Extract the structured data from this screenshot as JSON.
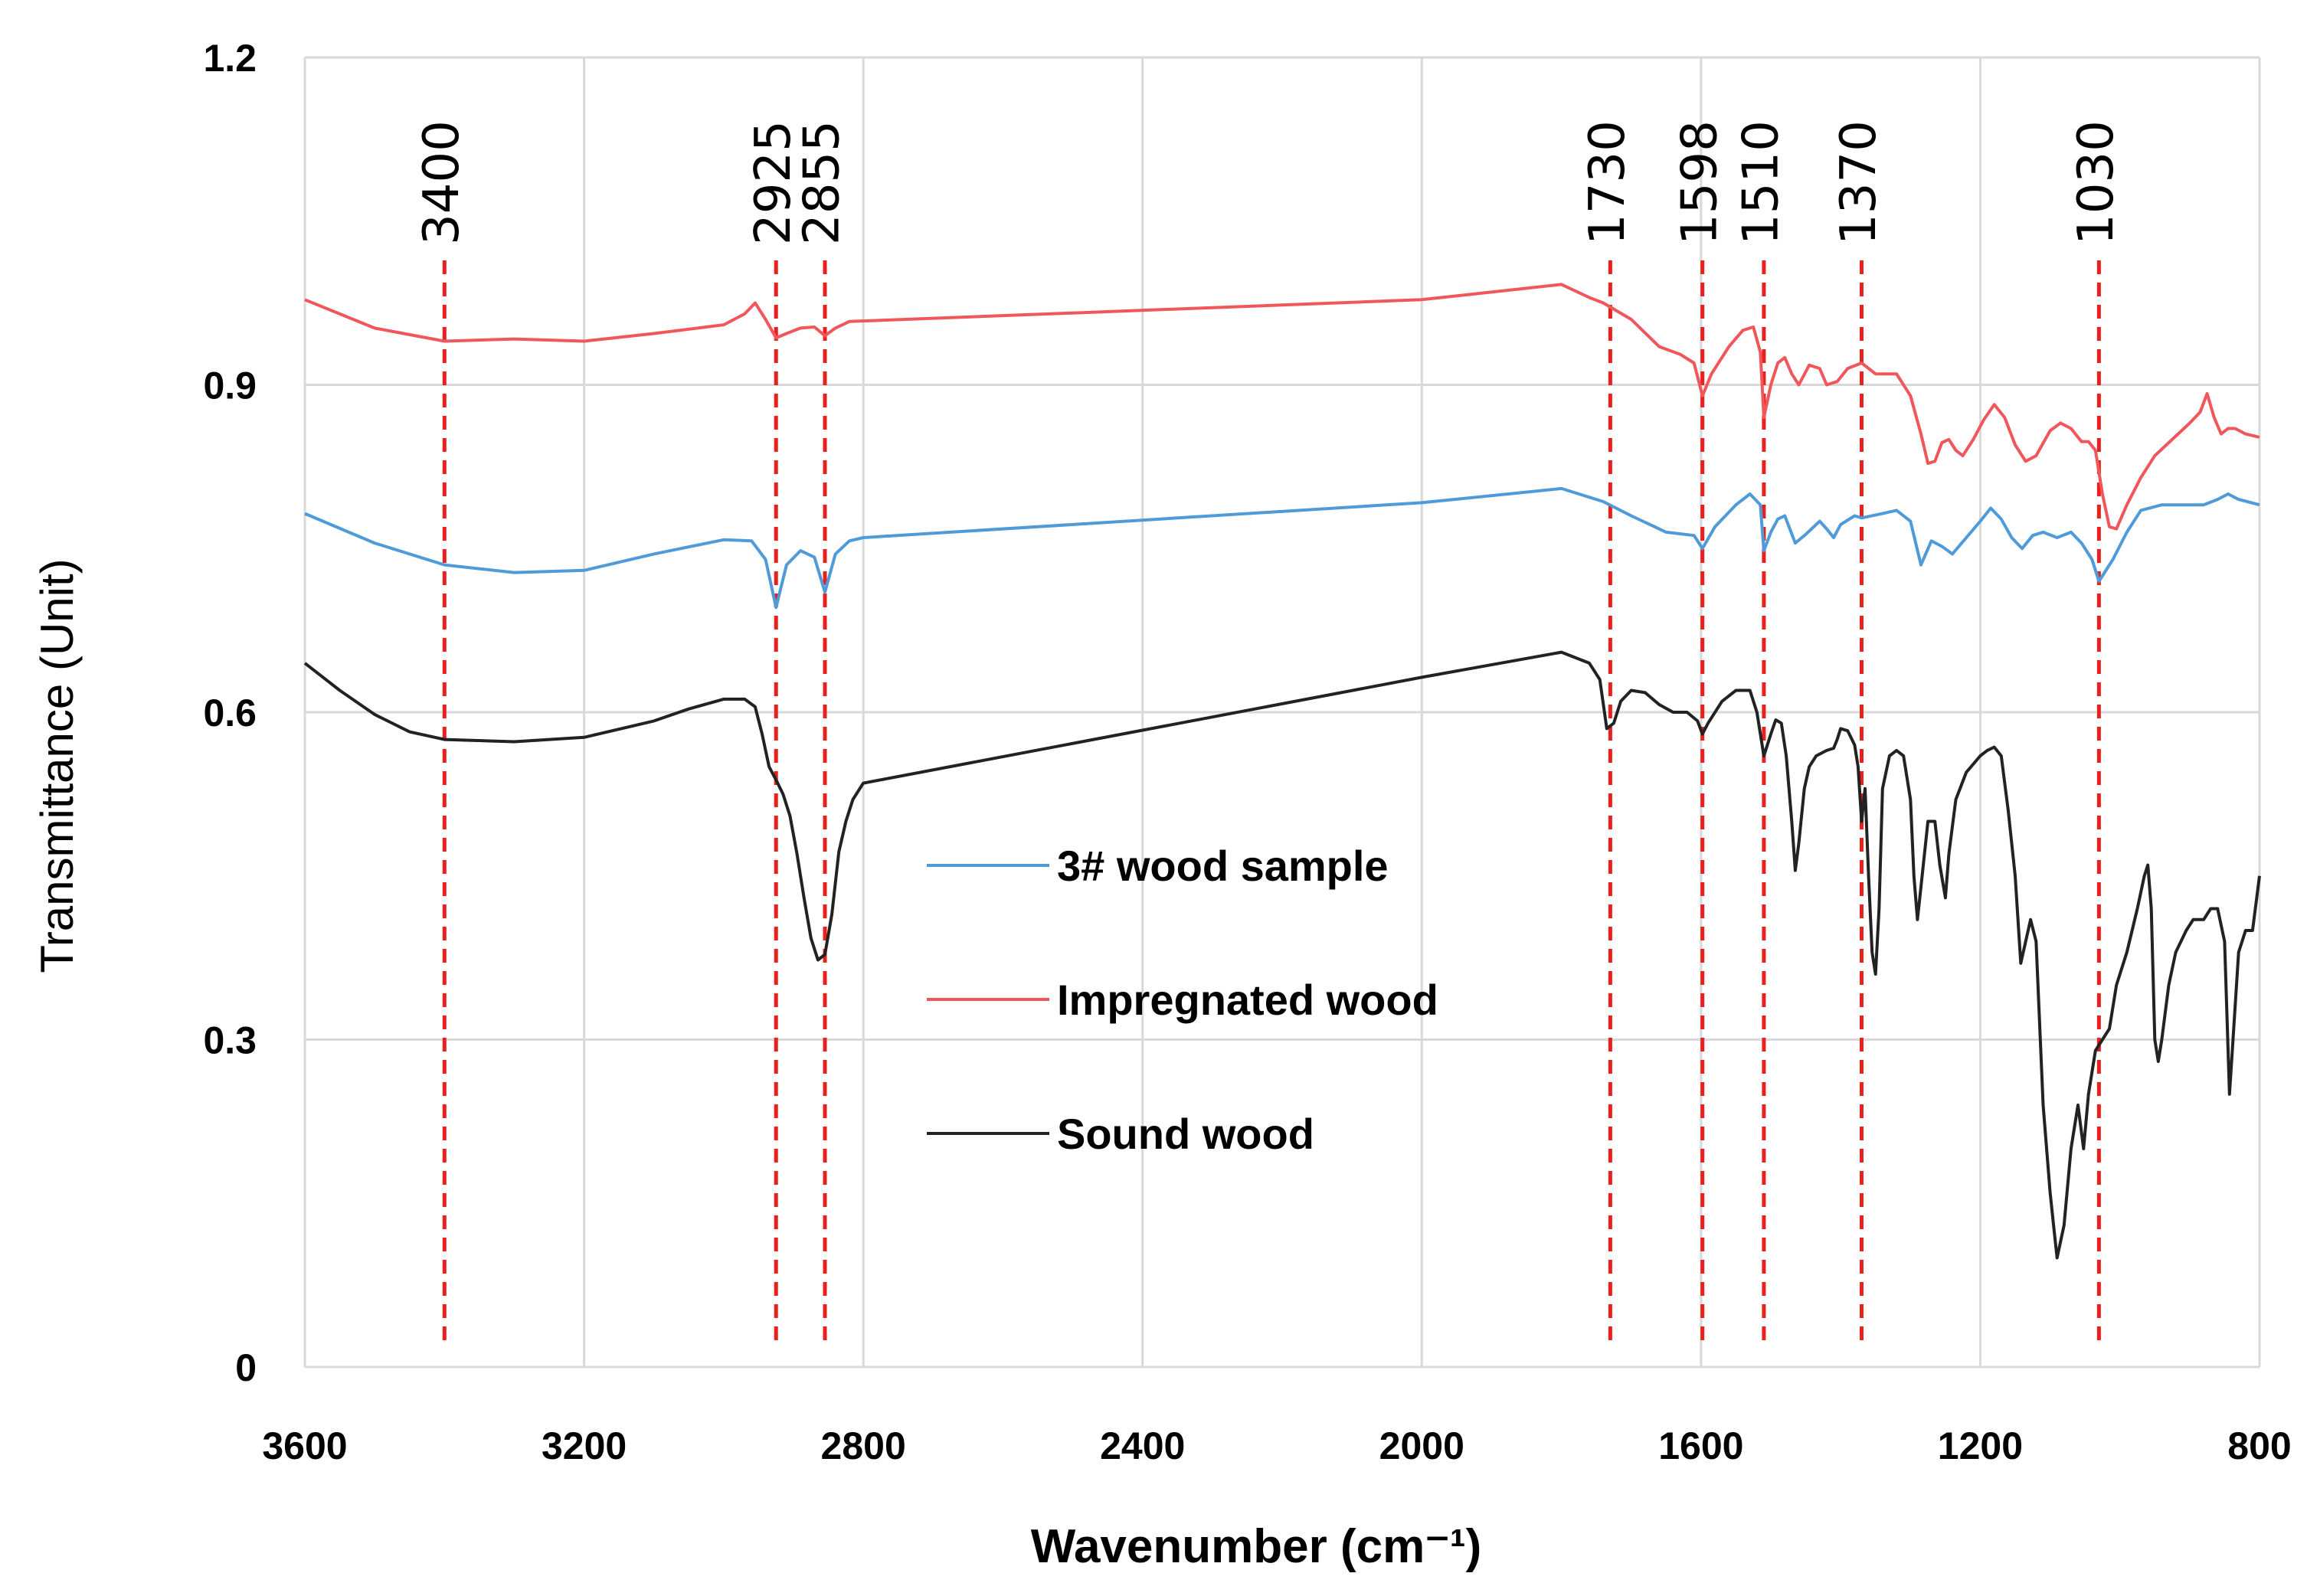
{
  "chart_data": {
    "type": "line",
    "xlabel": "Wavenumber (cm⁻¹)",
    "ylabel": "Transmittance (Unit)",
    "xlim": [
      3600,
      800
    ],
    "ylim": [
      0,
      1.2
    ],
    "x_ticks": [
      {
        "value": 3600,
        "label": "3600"
      },
      {
        "value": 3200,
        "label": "3200"
      },
      {
        "value": 2800,
        "label": "2800"
      },
      {
        "value": 2400,
        "label": "2400"
      },
      {
        "value": 2000,
        "label": "2000"
      },
      {
        "value": 1600,
        "label": "1600"
      },
      {
        "value": 1200,
        "label": "1200"
      },
      {
        "value": 800,
        "label": "800"
      }
    ],
    "y_ticks": [
      {
        "value": 0,
        "label": "0"
      },
      {
        "value": 0.3,
        "label": "0.3"
      },
      {
        "value": 0.6,
        "label": "0.6"
      },
      {
        "value": 0.9,
        "label": "0.9"
      },
      {
        "value": 1.2,
        "label": "1.2"
      }
    ],
    "grid": "vertical and horizontal",
    "peaks": [
      {
        "value": 3400,
        "label": "3400"
      },
      {
        "value": 2925,
        "label": "2925"
      },
      {
        "value": 2855,
        "label": "2855"
      },
      {
        "value": 1730,
        "label": "1730"
      },
      {
        "value": 1598,
        "label": "1598"
      },
      {
        "value": 1510,
        "label": "1510"
      },
      {
        "value": 1370,
        "label": "1370"
      },
      {
        "value": 1030,
        "label": "1030"
      }
    ],
    "peak_line_color": "#e8201e",
    "legend_position": "center",
    "series": [
      {
        "name": "3# wood sample",
        "color": "#4f9bd9",
        "points": [
          [
            3600,
            0.782
          ],
          [
            3500,
            0.755
          ],
          [
            3400,
            0.735
          ],
          [
            3300,
            0.728
          ],
          [
            3200,
            0.73
          ],
          [
            3100,
            0.745
          ],
          [
            3000,
            0.758
          ],
          [
            2960,
            0.757
          ],
          [
            2940,
            0.74
          ],
          [
            2925,
            0.696
          ],
          [
            2910,
            0.735
          ],
          [
            2890,
            0.748
          ],
          [
            2870,
            0.742
          ],
          [
            2855,
            0.71
          ],
          [
            2840,
            0.745
          ],
          [
            2820,
            0.757
          ],
          [
            2800,
            0.76
          ],
          [
            2000,
            0.792
          ],
          [
            1800,
            0.805
          ],
          [
            1740,
            0.793
          ],
          [
            1700,
            0.78
          ],
          [
            1650,
            0.765
          ],
          [
            1610,
            0.762
          ],
          [
            1598,
            0.75
          ],
          [
            1580,
            0.77
          ],
          [
            1550,
            0.79
          ],
          [
            1530,
            0.8
          ],
          [
            1515,
            0.79
          ],
          [
            1510,
            0.748
          ],
          [
            1500,
            0.765
          ],
          [
            1490,
            0.777
          ],
          [
            1480,
            0.78
          ],
          [
            1465,
            0.755
          ],
          [
            1450,
            0.763
          ],
          [
            1430,
            0.775
          ],
          [
            1420,
            0.768
          ],
          [
            1410,
            0.76
          ],
          [
            1400,
            0.772
          ],
          [
            1380,
            0.78
          ],
          [
            1370,
            0.778
          ],
          [
            1340,
            0.782
          ],
          [
            1320,
            0.785
          ],
          [
            1300,
            0.775
          ],
          [
            1285,
            0.735
          ],
          [
            1270,
            0.757
          ],
          [
            1255,
            0.752
          ],
          [
            1240,
            0.745
          ],
          [
            1220,
            0.76
          ],
          [
            1200,
            0.775
          ],
          [
            1185,
            0.787
          ],
          [
            1170,
            0.777
          ],
          [
            1155,
            0.76
          ],
          [
            1140,
            0.75
          ],
          [
            1125,
            0.762
          ],
          [
            1110,
            0.765
          ],
          [
            1090,
            0.76
          ],
          [
            1070,
            0.765
          ],
          [
            1055,
            0.755
          ],
          [
            1040,
            0.74
          ],
          [
            1030,
            0.72
          ],
          [
            1010,
            0.74
          ],
          [
            990,
            0.765
          ],
          [
            970,
            0.785
          ],
          [
            940,
            0.79
          ],
          [
            900,
            0.79
          ],
          [
            880,
            0.79
          ],
          [
            860,
            0.795
          ],
          [
            845,
            0.8
          ],
          [
            830,
            0.795
          ],
          [
            800,
            0.79
          ]
        ]
      },
      {
        "name": "Impregnated wood",
        "color": "#f0575a",
        "points": [
          [
            3600,
            0.978
          ],
          [
            3500,
            0.952
          ],
          [
            3400,
            0.94
          ],
          [
            3300,
            0.942
          ],
          [
            3200,
            0.94
          ],
          [
            3100,
            0.947
          ],
          [
            3000,
            0.955
          ],
          [
            2970,
            0.965
          ],
          [
            2955,
            0.975
          ],
          [
            2940,
            0.96
          ],
          [
            2925,
            0.943
          ],
          [
            2910,
            0.947
          ],
          [
            2890,
            0.952
          ],
          [
            2870,
            0.953
          ],
          [
            2855,
            0.945
          ],
          [
            2840,
            0.952
          ],
          [
            2820,
            0.958
          ],
          [
            2000,
            0.978
          ],
          [
            1800,
            0.992
          ],
          [
            1760,
            0.98
          ],
          [
            1740,
            0.975
          ],
          [
            1700,
            0.96
          ],
          [
            1660,
            0.935
          ],
          [
            1630,
            0.928
          ],
          [
            1610,
            0.92
          ],
          [
            1598,
            0.89
          ],
          [
            1585,
            0.91
          ],
          [
            1560,
            0.935
          ],
          [
            1540,
            0.95
          ],
          [
            1525,
            0.953
          ],
          [
            1515,
            0.93
          ],
          [
            1510,
            0.87
          ],
          [
            1500,
            0.9
          ],
          [
            1490,
            0.92
          ],
          [
            1480,
            0.925
          ],
          [
            1470,
            0.91
          ],
          [
            1460,
            0.9
          ],
          [
            1445,
            0.918
          ],
          [
            1430,
            0.915
          ],
          [
            1420,
            0.9
          ],
          [
            1405,
            0.903
          ],
          [
            1390,
            0.915
          ],
          [
            1370,
            0.92
          ],
          [
            1350,
            0.91
          ],
          [
            1320,
            0.91
          ],
          [
            1300,
            0.89
          ],
          [
            1285,
            0.855
          ],
          [
            1275,
            0.828
          ],
          [
            1265,
            0.83
          ],
          [
            1255,
            0.847
          ],
          [
            1245,
            0.85
          ],
          [
            1235,
            0.84
          ],
          [
            1225,
            0.835
          ],
          [
            1210,
            0.85
          ],
          [
            1195,
            0.868
          ],
          [
            1180,
            0.882
          ],
          [
            1165,
            0.87
          ],
          [
            1150,
            0.845
          ],
          [
            1135,
            0.83
          ],
          [
            1120,
            0.835
          ],
          [
            1100,
            0.858
          ],
          [
            1085,
            0.865
          ],
          [
            1070,
            0.86
          ],
          [
            1055,
            0.848
          ],
          [
            1045,
            0.848
          ],
          [
            1035,
            0.84
          ],
          [
            1025,
            0.8
          ],
          [
            1015,
            0.77
          ],
          [
            1005,
            0.768
          ],
          [
            990,
            0.79
          ],
          [
            970,
            0.815
          ],
          [
            950,
            0.835
          ],
          [
            920,
            0.853
          ],
          [
            900,
            0.865
          ],
          [
            885,
            0.875
          ],
          [
            875,
            0.892
          ],
          [
            865,
            0.87
          ],
          [
            855,
            0.855
          ],
          [
            845,
            0.86
          ],
          [
            835,
            0.86
          ],
          [
            820,
            0.855
          ],
          [
            800,
            0.852
          ]
        ]
      },
      {
        "name": "Sound wood",
        "color": "#222222",
        "points": [
          [
            3600,
            0.645
          ],
          [
            3550,
            0.62
          ],
          [
            3500,
            0.598
          ],
          [
            3450,
            0.582
          ],
          [
            3400,
            0.575
          ],
          [
            3300,
            0.573
          ],
          [
            3200,
            0.577
          ],
          [
            3100,
            0.592
          ],
          [
            3050,
            0.603
          ],
          [
            3000,
            0.612
          ],
          [
            2970,
            0.612
          ],
          [
            2955,
            0.605
          ],
          [
            2945,
            0.58
          ],
          [
            2935,
            0.55
          ],
          [
            2925,
            0.538
          ],
          [
            2915,
            0.525
          ],
          [
            2905,
            0.505
          ],
          [
            2895,
            0.47
          ],
          [
            2885,
            0.43
          ],
          [
            2875,
            0.393
          ],
          [
            2865,
            0.373
          ],
          [
            2855,
            0.378
          ],
          [
            2845,
            0.415
          ],
          [
            2835,
            0.472
          ],
          [
            2825,
            0.5
          ],
          [
            2815,
            0.52
          ],
          [
            2800,
            0.535
          ],
          [
            2000,
            0.632
          ],
          [
            1800,
            0.655
          ],
          [
            1760,
            0.645
          ],
          [
            1745,
            0.63
          ],
          [
            1735,
            0.585
          ],
          [
            1725,
            0.59
          ],
          [
            1715,
            0.61
          ],
          [
            1700,
            0.62
          ],
          [
            1680,
            0.618
          ],
          [
            1660,
            0.607
          ],
          [
            1640,
            0.6
          ],
          [
            1620,
            0.6
          ],
          [
            1605,
            0.592
          ],
          [
            1598,
            0.58
          ],
          [
            1590,
            0.59
          ],
          [
            1570,
            0.61
          ],
          [
            1550,
            0.62
          ],
          [
            1530,
            0.62
          ],
          [
            1520,
            0.6
          ],
          [
            1510,
            0.56
          ],
          [
            1500,
            0.58
          ],
          [
            1493,
            0.593
          ],
          [
            1485,
            0.59
          ],
          [
            1478,
            0.56
          ],
          [
            1470,
            0.5
          ],
          [
            1465,
            0.455
          ],
          [
            1460,
            0.48
          ],
          [
            1452,
            0.53
          ],
          [
            1445,
            0.55
          ],
          [
            1435,
            0.56
          ],
          [
            1420,
            0.565
          ],
          [
            1410,
            0.567
          ],
          [
            1405,
            0.575
          ],
          [
            1400,
            0.585
          ],
          [
            1390,
            0.583
          ],
          [
            1380,
            0.57
          ],
          [
            1375,
            0.55
          ],
          [
            1370,
            0.5
          ],
          [
            1365,
            0.53
          ],
          [
            1360,
            0.45
          ],
          [
            1355,
            0.38
          ],
          [
            1350,
            0.36
          ],
          [
            1345,
            0.42
          ],
          [
            1340,
            0.53
          ],
          [
            1330,
            0.56
          ],
          [
            1320,
            0.565
          ],
          [
            1310,
            0.56
          ],
          [
            1300,
            0.52
          ],
          [
            1295,
            0.45
          ],
          [
            1290,
            0.41
          ],
          [
            1285,
            0.44
          ],
          [
            1275,
            0.5
          ],
          [
            1265,
            0.5
          ],
          [
            1258,
            0.46
          ],
          [
            1250,
            0.43
          ],
          [
            1245,
            0.47
          ],
          [
            1235,
            0.52
          ],
          [
            1220,
            0.545
          ],
          [
            1200,
            0.56
          ],
          [
            1190,
            0.565
          ],
          [
            1180,
            0.568
          ],
          [
            1170,
            0.56
          ],
          [
            1160,
            0.51
          ],
          [
            1150,
            0.45
          ],
          [
            1142,
            0.37
          ],
          [
            1135,
            0.39
          ],
          [
            1128,
            0.41
          ],
          [
            1120,
            0.39
          ],
          [
            1110,
            0.24
          ],
          [
            1100,
            0.16
          ],
          [
            1095,
            0.13
          ],
          [
            1090,
            0.1
          ],
          [
            1080,
            0.13
          ],
          [
            1070,
            0.2
          ],
          [
            1060,
            0.24
          ],
          [
            1052,
            0.2
          ],
          [
            1045,
            0.25
          ],
          [
            1035,
            0.29
          ],
          [
            1025,
            0.3
          ],
          [
            1015,
            0.31
          ],
          [
            1005,
            0.35
          ],
          [
            990,
            0.38
          ],
          [
            975,
            0.42
          ],
          [
            965,
            0.45
          ],
          [
            960,
            0.46
          ],
          [
            955,
            0.42
          ],
          [
            950,
            0.3
          ],
          [
            945,
            0.28
          ],
          [
            940,
            0.3
          ],
          [
            930,
            0.35
          ],
          [
            920,
            0.38
          ],
          [
            905,
            0.4
          ],
          [
            895,
            0.41
          ],
          [
            880,
            0.41
          ],
          [
            870,
            0.42
          ],
          [
            860,
            0.42
          ],
          [
            850,
            0.39
          ],
          [
            843,
            0.25
          ],
          [
            838,
            0.3
          ],
          [
            830,
            0.38
          ],
          [
            820,
            0.4
          ],
          [
            810,
            0.4
          ],
          [
            800,
            0.45
          ]
        ]
      }
    ]
  }
}
